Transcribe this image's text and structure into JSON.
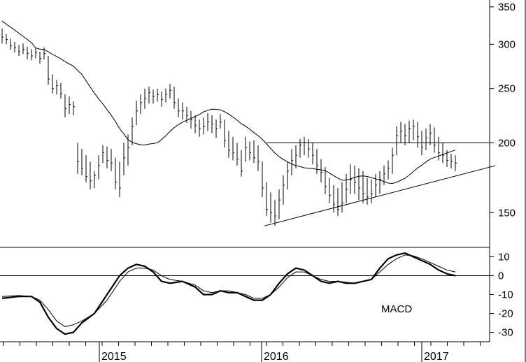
{
  "chart_data": [
    {
      "type": "ohlc-bar",
      "panel": "price",
      "scale": "log",
      "ylim": [
        130,
        360
      ],
      "y_ticks": [
        {
          "value": 350,
          "label": "350"
        },
        {
          "value": 300,
          "label": "300"
        },
        {
          "value": 250,
          "label": "250"
        },
        {
          "value": 200,
          "label": "200"
        },
        {
          "value": 150,
          "label": "150"
        }
      ],
      "x_labels": [
        "2015",
        "2016",
        "2017"
      ],
      "grid": false,
      "series": [
        {
          "kind": "weekly-high-low-close",
          "bars": [
            [
              0,
              320,
              301,
              309
            ],
            [
              2,
              313,
              300,
              306
            ],
            [
              4,
              307,
              293,
              298
            ],
            [
              6,
              303,
              290,
              296
            ],
            [
              8,
              299,
              286,
              291
            ],
            [
              10,
              301,
              288,
              294
            ],
            [
              12,
              297,
              282,
              289
            ],
            [
              14,
              294,
              281,
              286
            ],
            [
              16,
              296,
              283,
              290
            ],
            [
              18,
              291,
              277,
              283
            ],
            [
              20,
              296,
              282,
              289
            ],
            [
              22,
              286,
              254,
              260
            ],
            [
              24,
              265,
              245,
              250
            ],
            [
              26,
              259,
              244,
              253
            ],
            [
              28,
              256,
              240,
              245
            ],
            [
              30,
              244,
              222,
              230
            ],
            [
              32,
              242,
              225,
              234
            ],
            [
              34,
              237,
              224,
              232
            ],
            [
              36,
              200,
              176,
              185
            ],
            [
              38,
              195,
              175,
              180
            ],
            [
              40,
              190,
              170,
              174
            ],
            [
              42,
              185,
              165,
              171
            ],
            [
              44,
              178,
              166,
              175
            ],
            [
              46,
              190,
              172,
              182
            ],
            [
              48,
              198,
              184,
              192
            ],
            [
              50,
              197,
              180,
              186
            ],
            [
              52,
              195,
              178,
              184
            ],
            [
              54,
              188,
              165,
              170
            ],
            [
              56,
              185,
              160,
              166
            ],
            [
              58,
              200,
              175,
              188
            ],
            [
              60,
              207,
              182,
              196
            ],
            [
              62,
              222,
              198,
              214
            ],
            [
              64,
              238,
              215,
              228
            ],
            [
              66,
              244,
              225,
              236
            ],
            [
              68,
              250,
              230,
              240
            ],
            [
              70,
              252,
              235,
              246
            ],
            [
              72,
              249,
              235,
              242
            ],
            [
              74,
              250,
              237,
              244
            ],
            [
              76,
              247,
              232,
              239
            ],
            [
              78,
              250,
              236,
              244
            ],
            [
              80,
              255,
              240,
              248
            ],
            [
              82,
              252,
              230,
              236
            ],
            [
              84,
              240,
              222,
              228
            ],
            [
              86,
              236,
              220,
              228
            ],
            [
              88,
              232,
              217,
              224
            ],
            [
              90,
              228,
              212,
              220
            ],
            [
              92,
              224,
              208,
              215
            ],
            [
              94,
              220,
              205,
              212
            ],
            [
              96,
              222,
              207,
              214
            ],
            [
              98,
              226,
              210,
              218
            ],
            [
              100,
              224,
              208,
              216
            ],
            [
              102,
              220,
              204,
              212
            ],
            [
              104,
              225,
              212,
              218
            ],
            [
              106,
              220,
              196,
              202
            ],
            [
              108,
              210,
              188,
              194
            ],
            [
              110,
              205,
              186,
              192
            ],
            [
              112,
              200,
              182,
              187
            ],
            [
              114,
              194,
              174,
              178
            ],
            [
              116,
              205,
              185,
              196
            ],
            [
              118,
              201,
              186,
              192
            ],
            [
              120,
              202,
              184,
              188
            ],
            [
              122,
              198,
              178,
              185
            ],
            [
              124,
              185,
              160,
              166
            ],
            [
              126,
              170,
              148,
              152
            ],
            [
              128,
              163,
              144,
              150
            ],
            [
              130,
              158,
              142,
              148
            ],
            [
              132,
              165,
              146,
              158
            ],
            [
              134,
              175,
              155,
              168
            ],
            [
              136,
              185,
              165,
              178
            ],
            [
              138,
              195,
              175,
              186
            ],
            [
              140,
              198,
              180,
              190
            ],
            [
              142,
              203,
              188,
              198
            ],
            [
              144,
              205,
              190,
              200
            ],
            [
              146,
              203,
              188,
              195
            ],
            [
              148,
              200,
              183,
              190
            ],
            [
              150,
              195,
              176,
              182
            ],
            [
              152,
              187,
              170,
              177
            ],
            [
              154,
              181,
              162,
              167
            ],
            [
              156,
              173,
              156,
              161
            ],
            [
              158,
              168,
              150,
              155
            ],
            [
              160,
              166,
              148,
              152
            ],
            [
              162,
              170,
              150,
              156
            ],
            [
              164,
              176,
              156,
              165
            ],
            [
              166,
              183,
              162,
              172
            ],
            [
              168,
              182,
              162,
              170
            ],
            [
              170,
              180,
              158,
              166
            ],
            [
              172,
              178,
              156,
              162
            ],
            [
              174,
              173,
              155,
              160
            ],
            [
              176,
              172,
              156,
              162
            ],
            [
              178,
              176,
              160,
              168
            ],
            [
              180,
              178,
              162,
              172
            ],
            [
              182,
              182,
              168,
              176
            ],
            [
              184,
              186,
              172,
              180
            ],
            [
              186,
              196,
              176,
              190
            ],
            [
              188,
              214,
              190,
              206
            ],
            [
              190,
              218,
              200,
              210
            ],
            [
              192,
              216,
              198,
              206
            ],
            [
              194,
              219,
              200,
              212
            ],
            [
              196,
              220,
              202,
              214
            ],
            [
              198,
              218,
              196,
              205
            ],
            [
              200,
              210,
              190,
              196
            ],
            [
              202,
              212,
              194,
              204
            ],
            [
              204,
              216,
              198,
              208
            ],
            [
              206,
              213,
              192,
              198
            ],
            [
              208,
              205,
              186,
              192
            ],
            [
              210,
              200,
              184,
              190
            ],
            [
              212,
              194,
              181,
              186
            ],
            [
              214,
              191,
              180,
              185
            ],
            [
              216,
              190,
              178,
              184
            ]
          ]
        },
        {
          "kind": "moving-average",
          "description": "smooth trend line"
        }
      ],
      "lines": [
        {
          "kind": "horizontal",
          "value": 200
        },
        {
          "kind": "trendline",
          "from": [
            125,
            142
          ],
          "to": [
            235,
            182
          ]
        }
      ]
    },
    {
      "type": "line",
      "panel": "oscillator",
      "label": "MACD",
      "ylim": [
        -35,
        15
      ],
      "y_ticks": [
        {
          "value": 10,
          "label": "10"
        },
        {
          "value": 0,
          "label": "0"
        },
        {
          "value": -10,
          "label": "-10"
        },
        {
          "value": -20,
          "label": "-20"
        },
        {
          "value": -30,
          "label": "-30"
        }
      ],
      "series": [
        {
          "role": "macd",
          "points": [
            [
              0,
              -12
            ],
            [
              8,
              -11
            ],
            [
              14,
              -11
            ],
            [
              18,
              -14
            ],
            [
              22,
              -22
            ],
            [
              26,
              -28
            ],
            [
              30,
              -31
            ],
            [
              34,
              -30
            ],
            [
              38,
              -25
            ],
            [
              44,
              -20
            ],
            [
              50,
              -10
            ],
            [
              56,
              0
            ],
            [
              60,
              4
            ],
            [
              64,
              6
            ],
            [
              68,
              5
            ],
            [
              72,
              2
            ],
            [
              76,
              -3
            ],
            [
              80,
              -4
            ],
            [
              86,
              -3
            ],
            [
              92,
              -6
            ],
            [
              96,
              -10
            ],
            [
              100,
              -10
            ],
            [
              104,
              -8
            ],
            [
              108,
              -9
            ],
            [
              112,
              -9
            ],
            [
              116,
              -11
            ],
            [
              120,
              -13
            ],
            [
              124,
              -13
            ],
            [
              128,
              -10
            ],
            [
              132,
              -4
            ],
            [
              136,
              1
            ],
            [
              140,
              4
            ],
            [
              144,
              3
            ],
            [
              148,
              0
            ],
            [
              152,
              -3
            ],
            [
              156,
              -4
            ],
            [
              160,
              -3
            ],
            [
              164,
              -4
            ],
            [
              168,
              -4
            ],
            [
              172,
              -3
            ],
            [
              176,
              -2
            ],
            [
              180,
              4
            ],
            [
              184,
              9
            ],
            [
              188,
              11
            ],
            [
              192,
              12
            ],
            [
              196,
              10
            ],
            [
              200,
              8
            ],
            [
              204,
              6
            ],
            [
              208,
              3
            ],
            [
              212,
              1
            ],
            [
              216,
              0
            ]
          ]
        },
        {
          "role": "signal",
          "points": [
            [
              0,
              -11
            ],
            [
              8,
              -10.5
            ],
            [
              14,
              -11
            ],
            [
              18,
              -13
            ],
            [
              22,
              -18
            ],
            [
              26,
              -24
            ],
            [
              30,
              -27
            ],
            [
              34,
              -26
            ],
            [
              38,
              -24
            ],
            [
              44,
              -20
            ],
            [
              50,
              -13
            ],
            [
              56,
              -3
            ],
            [
              60,
              2
            ],
            [
              64,
              4
            ],
            [
              68,
              4
            ],
            [
              72,
              3
            ],
            [
              76,
              0
            ],
            [
              80,
              -2
            ],
            [
              86,
              -3
            ],
            [
              92,
              -5
            ],
            [
              96,
              -8
            ],
            [
              100,
              -9
            ],
            [
              104,
              -8
            ],
            [
              108,
              -8
            ],
            [
              112,
              -9
            ],
            [
              116,
              -10
            ],
            [
              120,
              -12
            ],
            [
              124,
              -12
            ],
            [
              128,
              -10
            ],
            [
              132,
              -6
            ],
            [
              136,
              -1
            ],
            [
              140,
              2
            ],
            [
              144,
              2
            ],
            [
              148,
              0
            ],
            [
              152,
              -2
            ],
            [
              156,
              -3
            ],
            [
              160,
              -3
            ],
            [
              164,
              -3.5
            ],
            [
              168,
              -4
            ],
            [
              172,
              -3
            ],
            [
              176,
              -2
            ],
            [
              180,
              2
            ],
            [
              184,
              6
            ],
            [
              188,
              9
            ],
            [
              192,
              11
            ],
            [
              196,
              10.5
            ],
            [
              200,
              9
            ],
            [
              204,
              7
            ],
            [
              208,
              5
            ],
            [
              212,
              3
            ],
            [
              216,
              2
            ]
          ]
        }
      ],
      "lines": [
        {
          "kind": "horizontal",
          "value": 0
        }
      ]
    }
  ]
}
